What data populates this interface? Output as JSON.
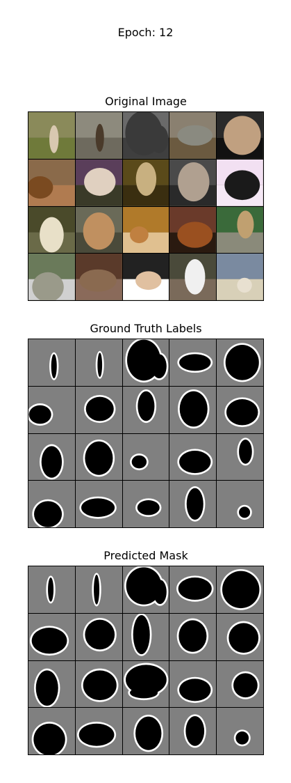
{
  "figure": {
    "title": "Epoch: 12"
  },
  "panels": {
    "original": {
      "title": "Original Image"
    },
    "ground_truth": {
      "title": "Ground Truth Labels"
    },
    "predicted": {
      "title": "Predicted Mask"
    }
  },
  "colors": {
    "mask_background": "#808080",
    "mask_foreground": "#000000",
    "mask_boundary": "#ffffff"
  },
  "grid": {
    "rows": 4,
    "cols": 5
  }
}
